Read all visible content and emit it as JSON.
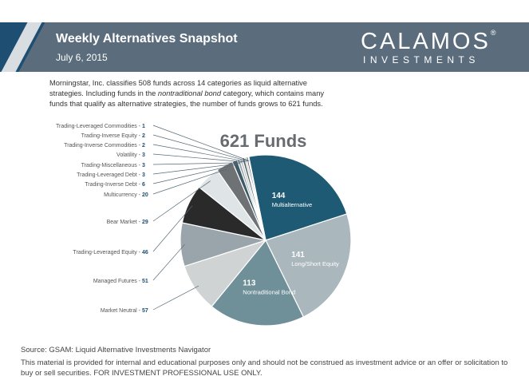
{
  "header": {
    "title": "Weekly Alternatives Snapshot",
    "date": "July 6, 2015",
    "brand": "CALAMOS",
    "brand_reg": "®",
    "brand_sub": "INVESTMENTS",
    "colors": {
      "bar": "#5b6d7d",
      "accent": "#1e4f73"
    }
  },
  "intro": {
    "part1": "Morningstar, Inc. classifies 508 funds across 14 categories as liquid alternative strategies. Including funds in the ",
    "italic": "nontraditional bond",
    "part2": " category, which contains many funds that qualify as alternative strategies, the number of funds grows to 621 funds."
  },
  "chart_data": {
    "type": "pie",
    "title": "621 Funds",
    "slices": [
      {
        "label": "Multialternative",
        "value": 144,
        "color": "#1e5a73",
        "inside": true
      },
      {
        "label": "Long/Short Equity",
        "value": 141,
        "color": "#aab7bd",
        "inside": true
      },
      {
        "label": "Nontraditional Bond",
        "value": 113,
        "color": "#6f8f99",
        "inside": true
      },
      {
        "label": "Market Neutral",
        "value": 57,
        "color": "#cfd3d4"
      },
      {
        "label": "Managed Futures",
        "value": 51,
        "color": "#9aa5ab"
      },
      {
        "label": "Trading-Leveraged Equity",
        "value": 46,
        "color": "#2a2a2a"
      },
      {
        "label": "Bear Market",
        "value": 29,
        "color": "#dfe4e6"
      },
      {
        "label": "Multicurrency",
        "value": 20,
        "color": "#6e7275"
      },
      {
        "label": "Trading-Inverse Debt",
        "value": 6,
        "color": "#3f5a66"
      },
      {
        "label": "Trading-Leveraged Debt",
        "value": 3,
        "color": "#8aa0a8"
      },
      {
        "label": "Trading-Miscellaneous",
        "value": 3,
        "color": "#c0c8cb"
      },
      {
        "label": "Volatility",
        "value": 3,
        "color": "#556066"
      },
      {
        "label": "Trading-Inverse Commodities",
        "value": 2,
        "color": "#b5bdc0"
      },
      {
        "label": "Trading-Inverse Equity",
        "value": 2,
        "color": "#40484c"
      },
      {
        "label": "Trading-Leveraged Commodities",
        "value": 1,
        "color": "#9fb0b6"
      }
    ]
  },
  "footer": {
    "source": "Source: GSAM: Liquid Alternative Investments Navigator",
    "disclaimer": "This material is provided for internal and educational purposes only and should not be construed as investment advice or an offer or solicitation to buy or sell securities. FOR INVESTMENT PROFESSIONAL USE ONLY."
  }
}
